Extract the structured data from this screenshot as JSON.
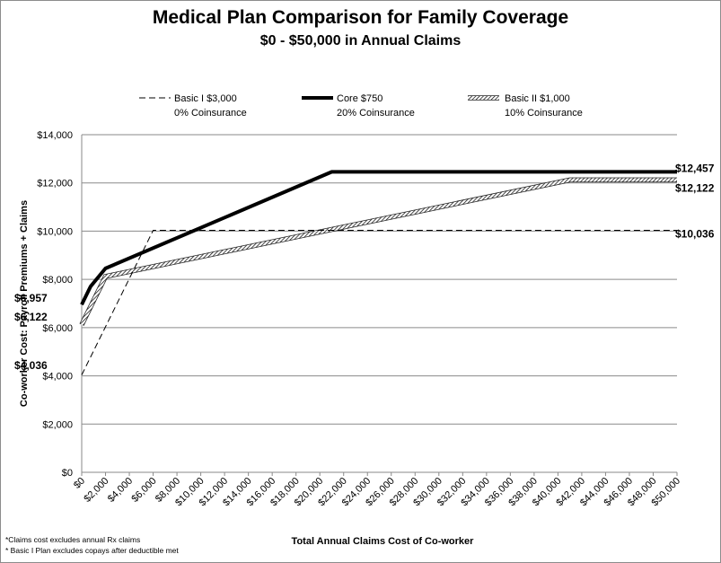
{
  "chart_data": {
    "type": "line",
    "title": "Medical Plan Comparison for Family Coverage",
    "subtitle": "$0 - $50,000 in Annual Claims",
    "xlabel": "Total Annual Claims Cost of Co-worker",
    "ylabel": "Co-worker Cost:  Payroll Premiums + Claims",
    "xlim": [
      0,
      50000
    ],
    "ylim": [
      0,
      14000
    ],
    "x_ticks": [
      "$0",
      "$2,000",
      "$4,000",
      "$6,000",
      "$8,000",
      "$10,000",
      "$12,000",
      "$14,000",
      "$16,000",
      "$18,000",
      "$20,000",
      "$22,000",
      "$24,000",
      "$26,000",
      "$28,000",
      "$30,000",
      "$32,000",
      "$34,000",
      "$36,000",
      "$38,000",
      "$40,000",
      "$42,000",
      "$44,000",
      "$46,000",
      "$48,000",
      "$50,000"
    ],
    "y_ticks": [
      "$0",
      "$2,000",
      "$4,000",
      "$6,000",
      "$8,000",
      "$10,000",
      "$12,000",
      "$14,000"
    ],
    "grid": "horizontal",
    "legend_position": "top",
    "series": [
      {
        "name": "Basic I $3,000",
        "detail": "0% Coinsurance",
        "style": "dashed",
        "color": "#000000",
        "x": [
          0,
          6000,
          50000
        ],
        "y": [
          4036,
          10036,
          10036
        ],
        "end_label": "$10,036",
        "start_label": "$4,036"
      },
      {
        "name": "Core $750",
        "detail": "20% Coinsurance",
        "style": "thick",
        "color": "#000000",
        "x": [
          0,
          750,
          2000,
          21000,
          50000
        ],
        "y": [
          6957,
          7707,
          8457,
          12457,
          12457
        ],
        "end_label": "$12,457",
        "start_label": "$6,957"
      },
      {
        "name": "Basic II $1,000",
        "detail": "10% Coinsurance",
        "style": "hatched",
        "color": "#000000",
        "x": [
          0,
          2000,
          41000,
          50000
        ],
        "y": [
          6122,
          8122,
          12122,
          12122
        ],
        "end_label": "$12,122",
        "start_label": "$6,122"
      }
    ]
  },
  "notes": [
    "*Claims cost excludes annual Rx claims",
    "* Basic I Plan excludes copays after deductible met"
  ]
}
